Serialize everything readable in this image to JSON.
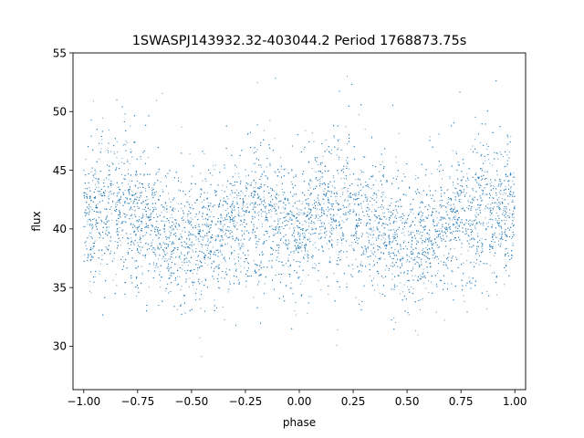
{
  "chart_data": {
    "type": "scatter",
    "title": "1SWASPJ143932.32-403044.2 Period 1768873.75s",
    "xlabel": "phase",
    "ylabel": "flux",
    "xlim": [
      -1.05,
      1.05
    ],
    "ylim": [
      26.3,
      55.0
    ],
    "xticks": [
      -1.0,
      -0.75,
      -0.5,
      -0.25,
      0.0,
      0.25,
      0.5,
      0.75,
      1.0
    ],
    "xtick_labels": [
      "−1.00",
      "−0.75",
      "−0.50",
      "−0.25",
      "0.00",
      "0.25",
      "0.50",
      "0.75",
      "1.00"
    ],
    "yticks": [
      30,
      35,
      40,
      45,
      50,
      55
    ],
    "ytick_labels": [
      "30",
      "35",
      "40",
      "45",
      "50",
      "55"
    ],
    "grid": false,
    "marker_color": "#1f77b4",
    "series": [
      {
        "phase_profile": [
          {
            "phase": -1.0,
            "center": 41.5,
            "spread": 3.2
          },
          {
            "phase": -0.9,
            "center": 41.5,
            "spread": 3.5
          },
          {
            "phase": -0.8,
            "center": 41.8,
            "spread": 3.8
          },
          {
            "phase": -0.7,
            "center": 40.8,
            "spread": 3.3
          },
          {
            "phase": -0.6,
            "center": 39.5,
            "spread": 3.0
          },
          {
            "phase": -0.5,
            "center": 38.8,
            "spread": 3.0
          },
          {
            "phase": -0.4,
            "center": 39.5,
            "spread": 3.3
          },
          {
            "phase": -0.3,
            "center": 40.5,
            "spread": 3.0
          },
          {
            "phase": -0.2,
            "center": 41.5,
            "spread": 3.6
          },
          {
            "phase": -0.1,
            "center": 40.5,
            "spread": 3.4
          },
          {
            "phase": 0.0,
            "center": 39.8,
            "spread": 3.2
          },
          {
            "phase": 0.1,
            "center": 41.5,
            "spread": 3.4
          },
          {
            "phase": 0.2,
            "center": 41.8,
            "spread": 3.8
          },
          {
            "phase": 0.3,
            "center": 40.8,
            "spread": 3.3
          },
          {
            "phase": 0.4,
            "center": 39.5,
            "spread": 3.0
          },
          {
            "phase": 0.5,
            "center": 38.8,
            "spread": 3.0
          },
          {
            "phase": 0.6,
            "center": 39.5,
            "spread": 3.3
          },
          {
            "phase": 0.7,
            "center": 40.5,
            "spread": 3.0
          },
          {
            "phase": 0.8,
            "center": 41.5,
            "spread": 3.8
          },
          {
            "phase": 0.9,
            "center": 41.2,
            "spread": 3.5
          },
          {
            "phase": 1.0,
            "center": 41.5,
            "spread": 3.2
          }
        ],
        "y_range": [
          27.5,
          54.0
        ]
      }
    ]
  }
}
